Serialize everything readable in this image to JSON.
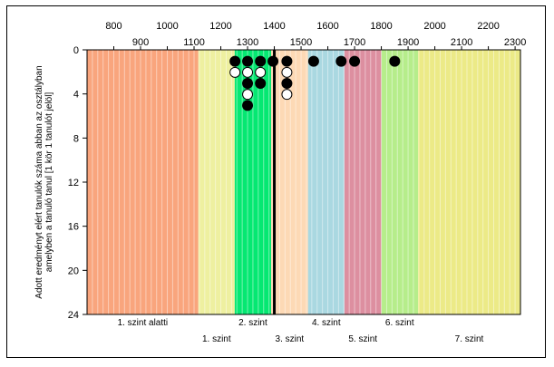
{
  "chart_data": {
    "type": "scatter",
    "title": "",
    "ylabel_lines": [
      "Adott eredményt elért tanulók száma abban az osztályban",
      "amelyben a tanuló tanul [1 kör 1 tanulót jelöl]"
    ],
    "xlim": [
      700,
      2320
    ],
    "ylim": [
      0,
      24
    ],
    "y_ticks": [
      0,
      4,
      8,
      12,
      16,
      20,
      24
    ],
    "x_ticks_row1": [
      800,
      1000,
      1200,
      1400,
      1600,
      1800,
      2000,
      2200
    ],
    "x_ticks_row2": [
      900,
      1100,
      1300,
      1500,
      1700,
      1900,
      2100,
      2300
    ],
    "x_tick_labels_row1": [
      "800",
      "1000",
      "1200",
      "1400",
      "1600",
      "1800",
      "2000",
      "2200"
    ],
    "x_tick_labels_row2": [
      "900",
      "1100",
      "1300",
      "1500",
      "1700",
      "1900",
      "2100",
      "2300"
    ],
    "y_tick_labels": [
      "0",
      "4",
      "8",
      "12",
      "16",
      "20",
      "24"
    ],
    "grid_step": 20,
    "bands": [
      {
        "label": "1. szint alatti",
        "from": 700,
        "to": 1116,
        "color": "#f9a57d",
        "row": 1
      },
      {
        "label": "1. szint",
        "from": 1116,
        "to": 1252,
        "color": "#eef0a0",
        "row": 2
      },
      {
        "label": "2. szint",
        "from": 1252,
        "to": 1388,
        "color": "#05e872",
        "row": 1
      },
      {
        "label": "3. szint",
        "from": 1388,
        "to": 1526,
        "color": "#fdd9b5",
        "row": 2
      },
      {
        "label": "4. szint",
        "from": 1526,
        "to": 1662,
        "color": "#aad8e1",
        "row": 1
      },
      {
        "label": "5. szint",
        "from": 1662,
        "to": 1800,
        "color": "#dd8fa0",
        "row": 2
      },
      {
        "label": "6. szint",
        "from": 1800,
        "to": 1937,
        "color": "#b6ed8b",
        "row": 1
      },
      {
        "label": "7. szint",
        "from": 1937,
        "to": 2320,
        "color": "#ecea87",
        "row": 2
      }
    ],
    "average_line_x": 1400,
    "series": [
      {
        "name": "filled",
        "fill": "#000000",
        "points": [
          {
            "x": 1253,
            "y": 1
          },
          {
            "x": 1300,
            "y": 1
          },
          {
            "x": 1300,
            "y": 3
          },
          {
            "x": 1300,
            "y": 5
          },
          {
            "x": 1348,
            "y": 1
          },
          {
            "x": 1348,
            "y": 3
          },
          {
            "x": 1395,
            "y": 1
          },
          {
            "x": 1447,
            "y": 1
          },
          {
            "x": 1447,
            "y": 3
          },
          {
            "x": 1547,
            "y": 1
          },
          {
            "x": 1650,
            "y": 1
          },
          {
            "x": 1700,
            "y": 1
          },
          {
            "x": 1850,
            "y": 1
          }
        ]
      },
      {
        "name": "open",
        "fill": "#ffffff",
        "points": [
          {
            "x": 1253,
            "y": 2
          },
          {
            "x": 1300,
            "y": 2
          },
          {
            "x": 1300,
            "y": 4
          },
          {
            "x": 1348,
            "y": 2
          },
          {
            "x": 1447,
            "y": 2
          },
          {
            "x": 1447,
            "y": 4
          }
        ]
      }
    ]
  }
}
